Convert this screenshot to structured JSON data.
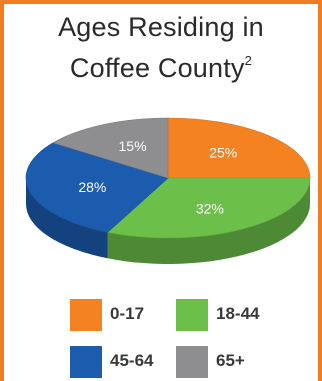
{
  "title": {
    "line1": "Ages Residing in",
    "line2": "Coffee County",
    "footnote": "2"
  },
  "chart_data": {
    "type": "pie",
    "categories": [
      "0-17",
      "18-44",
      "45-64",
      "65+"
    ],
    "values": [
      25,
      32,
      28,
      15
    ],
    "labels": [
      "25%",
      "32%",
      "28%",
      "15%"
    ],
    "colors": [
      "#f58220",
      "#6cc04a",
      "#1c5caf",
      "#8e8e90"
    ],
    "legend": "bottom"
  }
}
